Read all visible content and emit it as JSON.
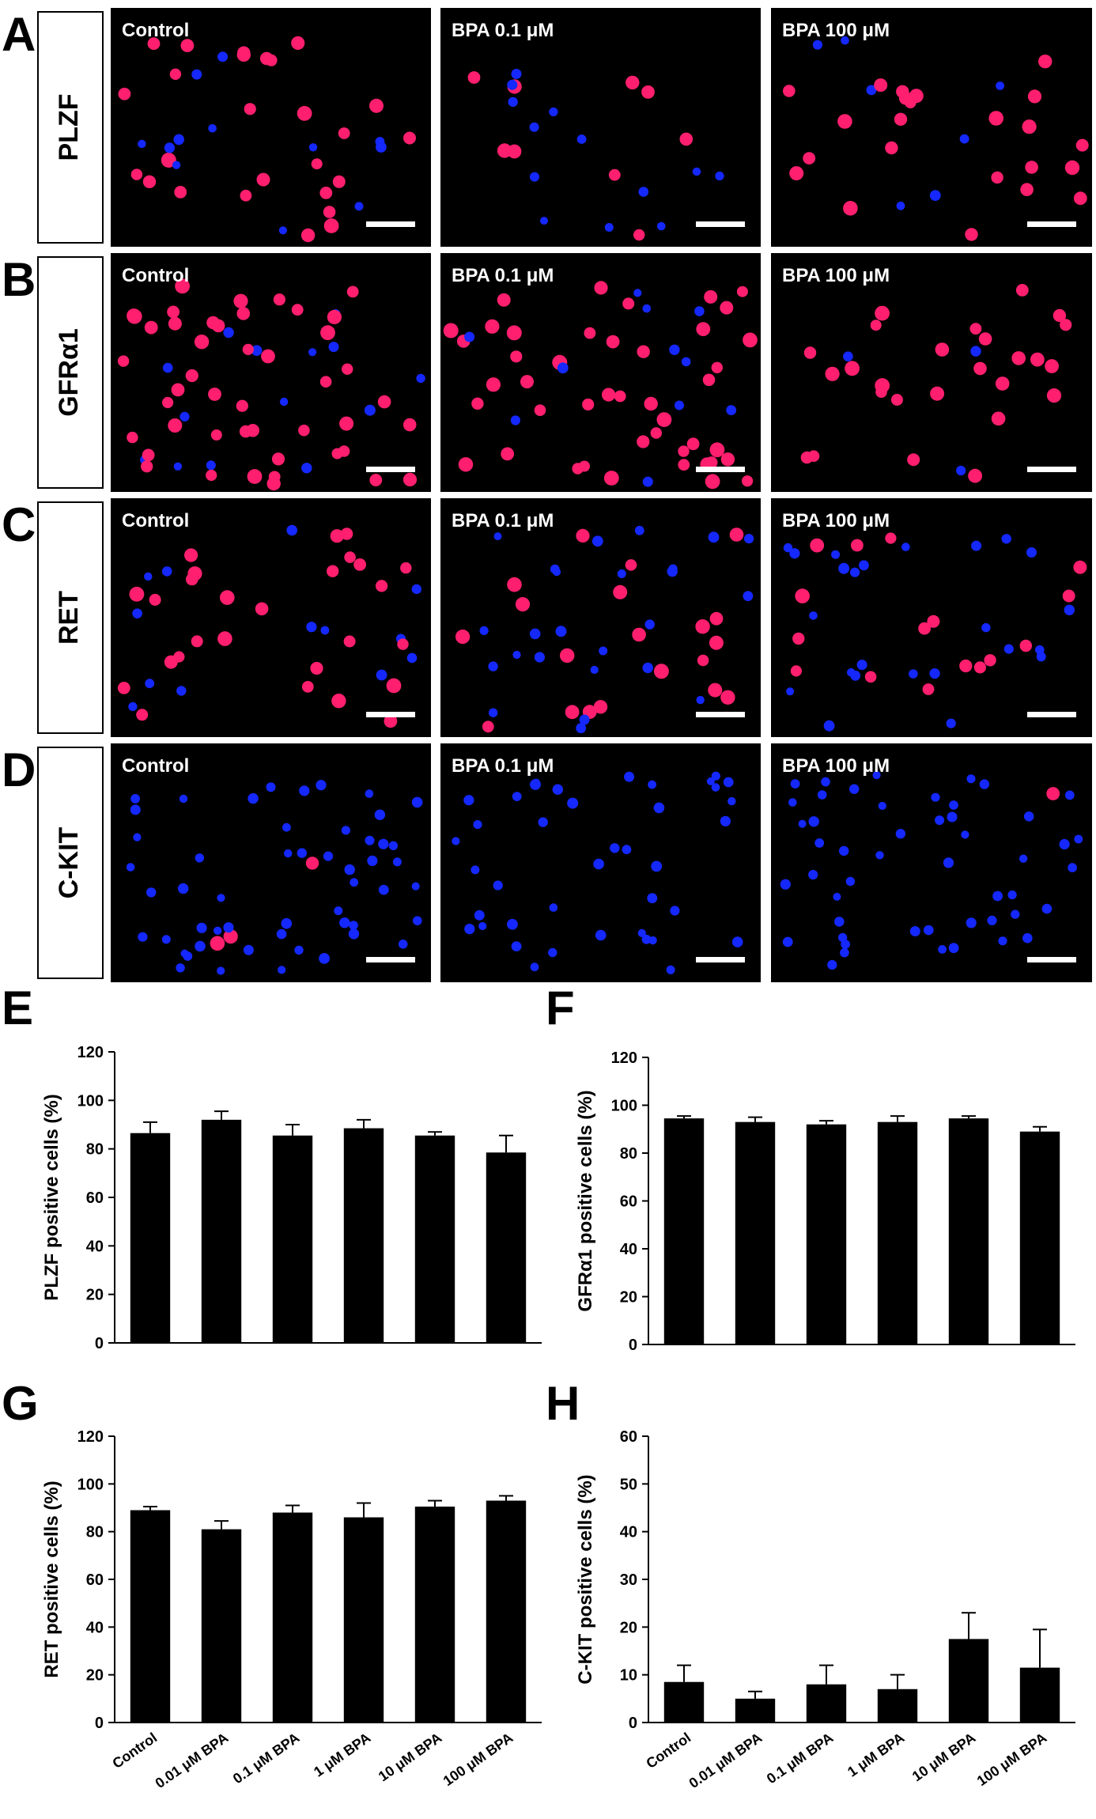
{
  "micrographs": {
    "rows": [
      {
        "letter": "A",
        "marker": "PLZF"
      },
      {
        "letter": "B",
        "marker": "GFRα1"
      },
      {
        "letter": "C",
        "marker": "RET"
      },
      {
        "letter": "D",
        "marker": "C-KIT"
      }
    ],
    "conditions": [
      "Control",
      "BPA 0.1 μM",
      "BPA 100 μM"
    ],
    "colors": {
      "nucleus": "#1428ff",
      "positive": "#ff1f6e",
      "background": "#000000"
    }
  },
  "chart_data": [
    {
      "letter": "E",
      "type": "bar",
      "ylabel": "PLZF positive cells (%)",
      "ylim": [
        0,
        120
      ],
      "yticks": [
        0,
        20,
        40,
        60,
        80,
        100,
        120
      ],
      "categories": [
        "",
        "",
        "",
        "",
        "",
        ""
      ],
      "values": [
        86.5,
        92,
        85.5,
        88.5,
        85.5,
        78.5
      ],
      "errors": [
        4.5,
        3.5,
        4.5,
        3.5,
        1.5,
        7
      ]
    },
    {
      "letter": "F",
      "type": "bar",
      "ylabel": "GFRα1 positive cells (%)",
      "ylim": [
        0,
        120
      ],
      "yticks": [
        0,
        20,
        40,
        60,
        80,
        100,
        120
      ],
      "categories": [
        "",
        "",
        "",
        "",
        "",
        ""
      ],
      "values": [
        94.5,
        93,
        92,
        93,
        94.5,
        89
      ],
      "errors": [
        1,
        2,
        1.5,
        2.5,
        1,
        2
      ]
    },
    {
      "letter": "G",
      "type": "bar",
      "ylabel": "RET positive cells (%)",
      "ylim": [
        0,
        120
      ],
      "yticks": [
        0,
        20,
        40,
        60,
        80,
        100,
        120
      ],
      "categories": [
        "Control",
        "0.01 μM BPA",
        "0.1 μM BPA",
        "1 μM BPA",
        "10 μM BPA",
        "100 μM BPA"
      ],
      "values": [
        89,
        81,
        88,
        86,
        90.5,
        93
      ],
      "errors": [
        1.5,
        3.5,
        3,
        6,
        2.5,
        2
      ]
    },
    {
      "letter": "H",
      "type": "bar",
      "ylabel": "C-KIT positive cells (%)",
      "ylim": [
        0,
        60
      ],
      "yticks": [
        0,
        10,
        20,
        30,
        40,
        50,
        60
      ],
      "categories": [
        "Control",
        "0.01 μM BPA",
        "0.1 μM BPA",
        "1 μM BPA",
        "10 μM BPA",
        "100 μM BPA"
      ],
      "values": [
        8.5,
        5,
        8,
        7,
        17.5,
        11.5
      ],
      "errors": [
        3.5,
        1.5,
        4,
        3,
        5.5,
        8
      ]
    }
  ]
}
